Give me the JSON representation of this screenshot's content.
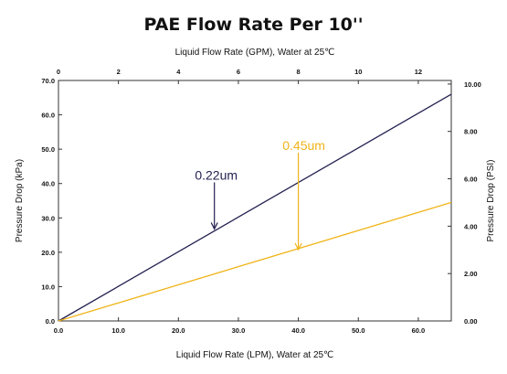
{
  "chart_data": {
    "type": "line",
    "title": "PAE Flow Rate Per 10''",
    "xlabel": "Liquid Flow Rate (LPM), Water  at  25℃",
    "x2label": "Liquid Flow Rate (GPM), Water  at  25℃",
    "ylabel": "Pressure Drop (kPa)",
    "y2label": "Pressure Drop (PSI)",
    "xlim": [
      0,
      65.5
    ],
    "ylim": [
      0,
      70
    ],
    "x2lim": [
      0,
      13.1
    ],
    "y2lim": [
      0,
      10.15
    ],
    "xticks": [
      "0.0",
      "10.0",
      "20.0",
      "30.0",
      "40.0",
      "50.0",
      "60.0"
    ],
    "xtick_values": [
      0,
      10,
      20,
      30,
      40,
      50,
      60
    ],
    "yticks": [
      "0.0",
      "10.0",
      "20.0",
      "30.0",
      "40.0",
      "50.0",
      "60.0",
      "70.0"
    ],
    "ytick_values": [
      0,
      10,
      20,
      30,
      40,
      50,
      60,
      70
    ],
    "x2ticks": [
      "0",
      "2",
      "4",
      "6",
      "8",
      "10",
      "12"
    ],
    "x2tick_values": [
      0,
      2,
      4,
      6,
      8,
      10,
      12
    ],
    "y2ticks": [
      "0.00",
      "2.00",
      "4.00",
      "6.00",
      "8.00",
      "10.00"
    ],
    "y2tick_values": [
      0,
      2,
      4,
      6,
      8,
      10
    ],
    "grid": false,
    "series": [
      {
        "name": "0.22um",
        "color": "#232150",
        "x": [
          0,
          65.5
        ],
        "y": [
          0,
          66
        ]
      },
      {
        "name": "0.45um",
        "color": "#f0b419",
        "x": [
          0,
          65.5
        ],
        "y": [
          0,
          34.5
        ]
      }
    ],
    "annotations": [
      {
        "text": "0.22um",
        "color": "#232150",
        "x": 26,
        "y": 26.5
      },
      {
        "text": "0.45um",
        "color": "#f0b419",
        "x": 40,
        "y": 20.5
      }
    ]
  }
}
